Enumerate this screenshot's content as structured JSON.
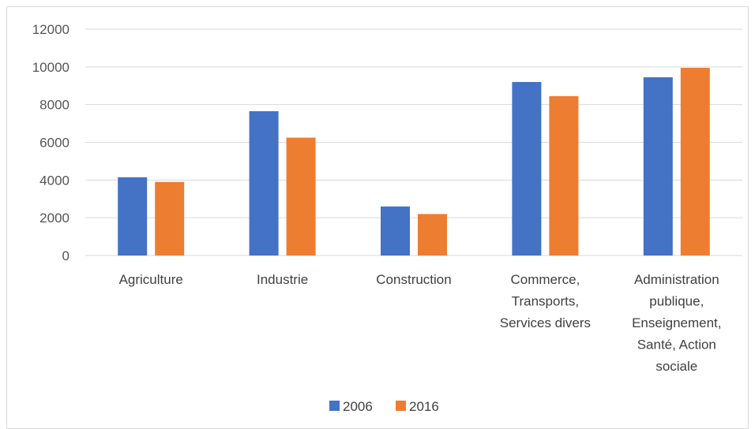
{
  "chart_data": {
    "type": "bar",
    "categories": [
      [
        "Agriculture"
      ],
      [
        "Industrie"
      ],
      [
        "Construction"
      ],
      [
        "Commerce,",
        "Transports,",
        "Services divers"
      ],
      [
        "Administration",
        "publique,",
        "Enseignement,",
        "Santé, Action",
        "sociale"
      ]
    ],
    "series": [
      {
        "name": "2006",
        "color": "#4472C4",
        "values": [
          4150,
          7650,
          2600,
          9200,
          9450
        ]
      },
      {
        "name": "2016",
        "color": "#ED7D31",
        "values": [
          3900,
          6250,
          2200,
          8450,
          9950
        ]
      }
    ],
    "ylim": [
      0,
      12000
    ],
    "yticks": [
      0,
      2000,
      4000,
      6000,
      8000,
      10000,
      12000
    ],
    "grid": true,
    "legend_position": "bottom"
  }
}
